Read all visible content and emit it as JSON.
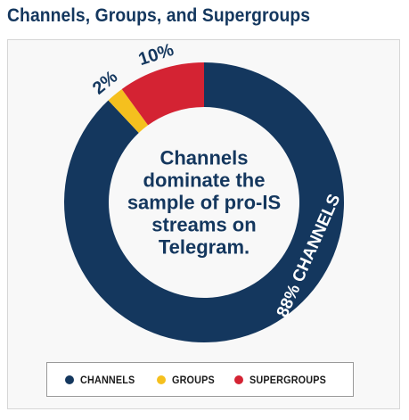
{
  "header": {
    "title": "Channels, Groups, and Supergroups"
  },
  "chart_data": {
    "type": "pie",
    "title": "Channels, Groups, and Supergroups",
    "center_text": [
      "Channels",
      "dominate the",
      "sample of pro-IS",
      "streams on",
      "Telegram."
    ],
    "unit": "%",
    "categories": [
      "CHANNELS",
      "GROUPS",
      "SUPERGROUPS"
    ],
    "values": [
      88,
      2,
      10
    ],
    "data_labels": [
      "88% CHANNELS",
      "2%",
      "10%"
    ],
    "colors": [
      "#14375e",
      "#f5c01e",
      "#d42333"
    ],
    "legend_position": "bottom"
  },
  "legend": {
    "items": [
      {
        "label": "CHANNELS",
        "color": "#14375e"
      },
      {
        "label": "GROUPS",
        "color": "#f5c01e"
      },
      {
        "label": "SUPERGROUPS",
        "color": "#d42333"
      }
    ]
  }
}
